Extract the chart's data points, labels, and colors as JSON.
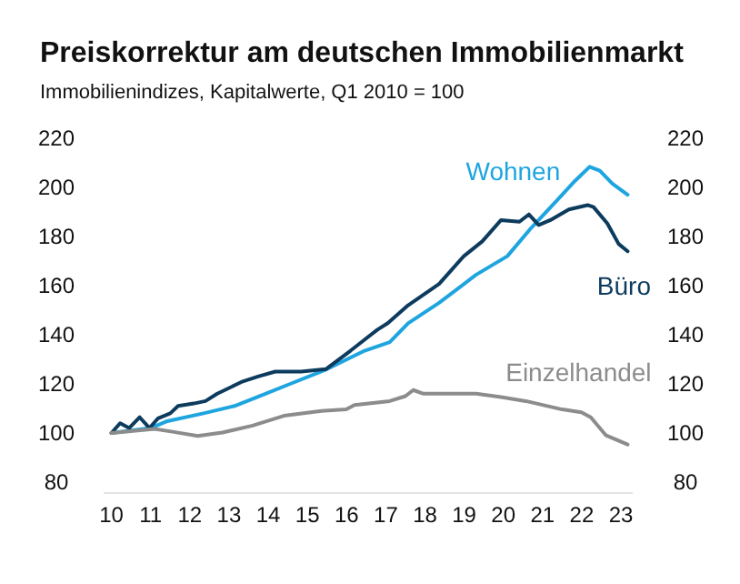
{
  "chart_data": {
    "type": "line",
    "title": "Preiskorrektur am deutschen Immobilienmarkt",
    "subtitle": "Immobilienindizes, Kapitalwerte, Q1 2010 = 100",
    "series": [
      {
        "name": "Wohnen",
        "color": "#1ea5e0",
        "x": [
          10,
          11,
          11.4,
          12.35,
          13.14,
          13.93,
          14.56,
          15.5,
          16.46,
          17.1,
          17.57,
          18.36,
          19.3,
          20.1,
          20.72,
          21.36,
          21.83,
          22.2,
          22.46,
          22.78,
          23.17
        ],
        "values": [
          100,
          102,
          104.7,
          108,
          111,
          116,
          120,
          126,
          133.5,
          137,
          144.7,
          153,
          164.4,
          172,
          183.7,
          194.6,
          202.7,
          208.4,
          206.8,
          201.5,
          197
        ]
      },
      {
        "name": "Büro",
        "color": "#0d3b5e",
        "x": [
          10,
          10.22,
          10.45,
          10.72,
          10.97,
          11.19,
          11.5,
          11.7,
          12.1,
          12.4,
          12.7,
          13.35,
          13.74,
          14.18,
          14.84,
          15.47,
          16.1,
          16.5,
          16.78,
          17.05,
          17.57,
          18.36,
          18.99,
          19.46,
          19.94,
          20.41,
          20.65,
          20.9,
          21.2,
          21.67,
          22.15,
          22.3,
          22.65,
          22.94,
          23.17
        ],
        "values": [
          100,
          104,
          102,
          106.4,
          102,
          106,
          108,
          111,
          112,
          113,
          116,
          121,
          123,
          125,
          125,
          126,
          133.5,
          138.5,
          142,
          144.7,
          152,
          160.7,
          172,
          178,
          186.7,
          186,
          189,
          184.7,
          186.7,
          191,
          192.8,
          192,
          185.4,
          177,
          174
        ]
      },
      {
        "name": "Einzelhandel",
        "color": "#8c8c8c",
        "x": [
          10,
          11.1,
          11.56,
          12.2,
          12.83,
          13.6,
          14.4,
          15.36,
          15.99,
          16.2,
          17.1,
          17.5,
          17.7,
          17.96,
          18.04,
          19.3,
          19.94,
          20.57,
          21.5,
          21.99,
          22.23,
          22.62,
          23.17
        ],
        "values": [
          100,
          101.7,
          100.5,
          98.8,
          100.2,
          103,
          107,
          109,
          109.6,
          111.4,
          113,
          115,
          117.5,
          116,
          116,
          116,
          114.6,
          113,
          109.6,
          108.4,
          106.4,
          99,
          95.3
        ]
      }
    ],
    "xlim": [
      9.8,
      23.3
    ],
    "xticks": [
      {
        "value": 10,
        "label": "10"
      },
      {
        "value": 11,
        "label": "11"
      },
      {
        "value": 12,
        "label": "12"
      },
      {
        "value": 13,
        "label": "13"
      },
      {
        "value": 14,
        "label": "14"
      },
      {
        "value": 15,
        "label": "15"
      },
      {
        "value": 16,
        "label": "16"
      },
      {
        "value": 17,
        "label": "17"
      },
      {
        "value": 18,
        "label": "18"
      },
      {
        "value": 19,
        "label": "19"
      },
      {
        "value": 20,
        "label": "20"
      },
      {
        "value": 21,
        "label": "21"
      },
      {
        "value": 22,
        "label": "22"
      },
      {
        "value": 23,
        "label": "23"
      }
    ],
    "ylim": [
      80,
      220
    ],
    "yticks": [
      80,
      100,
      120,
      140,
      160,
      180,
      200,
      220
    ],
    "y2lim": [
      80,
      220
    ],
    "y2ticks": [
      80,
      100,
      120,
      140,
      160,
      180,
      200,
      220
    ],
    "grid": false
  }
}
